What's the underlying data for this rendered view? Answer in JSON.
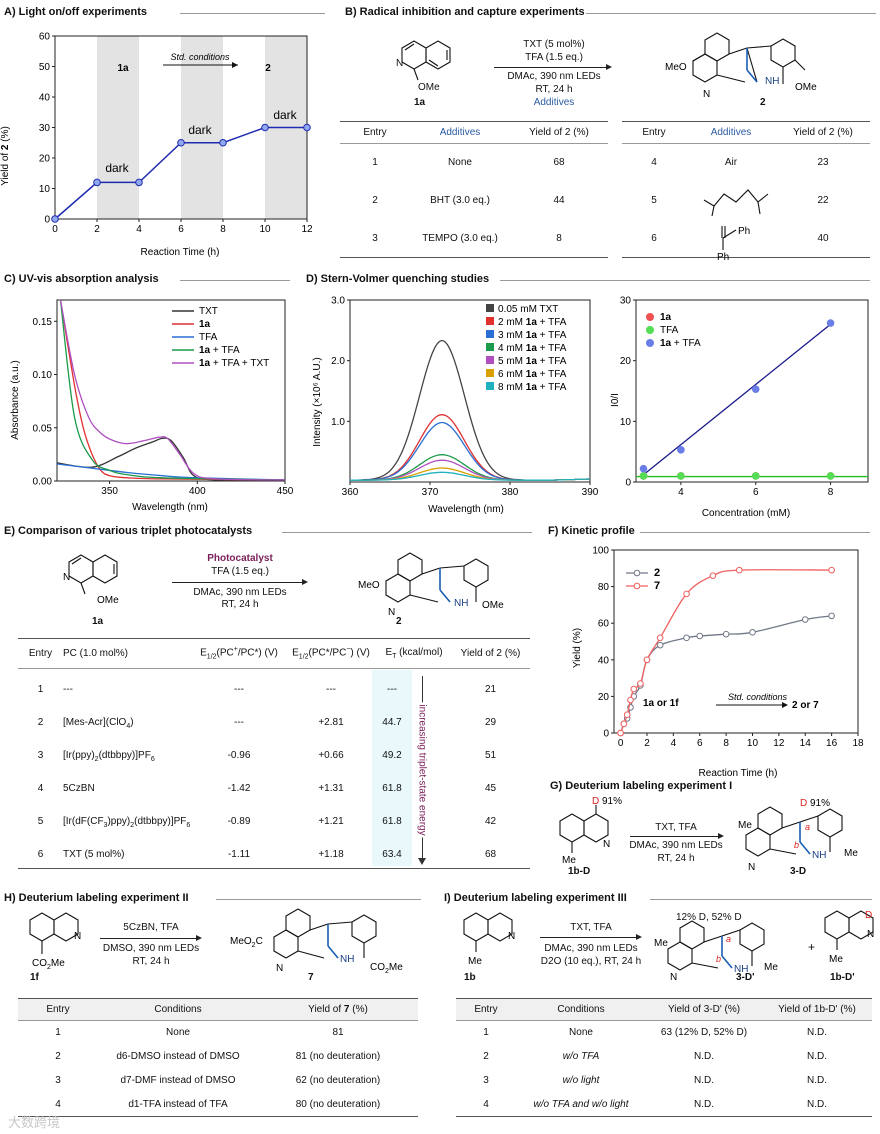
{
  "panelA": {
    "title": "A) Light on/off experiments",
    "ylabel_pre": "Yield of ",
    "ylabel_bold": "2",
    "ylabel_post": " (%)",
    "xlabel": "Reaction Time (h)",
    "arrow_text": "Std. conditions",
    "from": "1a",
    "to": "2",
    "dark_label": "dark"
  },
  "panelB": {
    "title": "B) Radical inhibition and capture experiments",
    "cond1": "TXT (5 mol%)",
    "cond2": "TFA (1.5 eq.)",
    "cond3": "DMAc, 390 nm LEDs",
    "cond4": "RT, 24 h",
    "additives_label": "Additives",
    "sm_label": "1a",
    "prod_label": "2",
    "ome": "OMe",
    "meo": "MeO",
    "nh": "NH",
    "col_entry": "Entry",
    "col_add": "Additives",
    "col_yield": "Yield of 2 (%)",
    "rows_left": [
      {
        "entry": "1",
        "add": "None",
        "yield": "68"
      },
      {
        "entry": "2",
        "add": "BHT (3.0 eq.)",
        "yield": "44"
      },
      {
        "entry": "3",
        "add": "TEMPO (3.0 eq.)",
        "yield": "8"
      }
    ],
    "rows_right": [
      {
        "entry": "4",
        "add": "Air",
        "yield": "23"
      },
      {
        "entry": "5",
        "add": "",
        "yield": "22"
      },
      {
        "entry": "6",
        "add": "",
        "yield": "40"
      }
    ],
    "ph": "Ph"
  },
  "panelC": {
    "title": "C) UV-vis absorption analysis",
    "ylabel": "Absorbance (a.u.)",
    "xlabel": "Wavelength (nm)",
    "legend": [
      "TXT",
      "1a",
      "TFA",
      "1a + TFA",
      "1a + TFA + TXT"
    ]
  },
  "panelD": {
    "title": "D) Stern-Volmer quenching studies",
    "ylabel": "Intensity (×10⁶ A.U.)",
    "xlabel": "Wavelength (nm)",
    "legend": [
      "0.05 mM TXT",
      "2 mM 1a + TFA",
      "3 mM 1a + TFA",
      "4 mM 1a + TFA",
      "5 mM 1a + TFA",
      "6 mM 1a + TFA",
      "8 mM 1a + TFA"
    ],
    "sv_ylabel": "I0/I",
    "sv_xlabel": "Concentration (mM)",
    "sv_legend": [
      "1a",
      "TFA",
      "1a + TFA"
    ]
  },
  "panelE": {
    "title": "E) Comparison of various triplet photocatalysts",
    "pc_label": "Photocatalyst",
    "cond1": "TFA (1.5 eq.)",
    "cond2": "DMAc, 390 nm LEDs",
    "cond3": "RT, 24 h",
    "sm_label": "1a",
    "prod_label": "2",
    "col_entry": "Entry",
    "col_pc": "PC (1.0 mol%)",
    "col_e1": "E1/2(PC+/PC*) (V)",
    "col_e2": "E1/2(PC*/PC−) (V)",
    "col_et": "ET (kcal/mol)",
    "col_yield": "Yield of 2 (%)",
    "energy_label": "increasing triplet-state energy",
    "rows": [
      {
        "entry": "1",
        "pc": "---",
        "e1": "---",
        "e2": "---",
        "et": "---",
        "yield": "21"
      },
      {
        "entry": "2",
        "pc": "[Mes-Acr](ClO4)",
        "e1": "---",
        "e2": "+2.81",
        "et": "44.7",
        "yield": "29"
      },
      {
        "entry": "3",
        "pc": "[Ir(ppy)2(dtbbpy)]PF6",
        "e1": "-0.96",
        "e2": "+0.66",
        "et": "49.2",
        "yield": "51"
      },
      {
        "entry": "4",
        "pc": "5CzBN",
        "e1": "-1.42",
        "e2": "+1.31",
        "et": "61.8",
        "yield": "45"
      },
      {
        "entry": "5",
        "pc": "[Ir(dF(CF3)ppy)2(dtbbpy)]PF6",
        "e1": "-0.89",
        "e2": "+1.21",
        "et": "61.8",
        "yield": "42"
      },
      {
        "entry": "6",
        "pc": "TXT (5 mol%)",
        "e1": "-1.11",
        "e2": "+1.18",
        "et": "63.4",
        "yield": "68"
      }
    ]
  },
  "panelF": {
    "title": "F) Kinetic profile",
    "ylabel": "Yield (%)",
    "xlabel": "Reaction Time (h)",
    "legend": [
      "2",
      "7"
    ],
    "arrow_text": "Std. conditions",
    "from": "1a or 1f",
    "to": "2 or 7"
  },
  "panelG": {
    "title": "G) Deuterium labeling experiment I",
    "cond1": "TXT, TFA",
    "cond2": "DMAc, 390 nm LEDs",
    "cond3": "RT, 24 h",
    "sm_label": "1b-D",
    "prod_label": "3-D",
    "d_pct": "91%",
    "d": "D",
    "me": "Me"
  },
  "panelH": {
    "title": "H) Deuterium labeling experiment II",
    "cond1": "5CzBN, TFA",
    "cond2": "DMSO, 390 nm LEDs",
    "cond3": "RT, 24 h",
    "sm_label": "1f",
    "prod_label": "7",
    "co2me": "CO2Me",
    "col_entry": "Entry",
    "col_cond": "Conditions",
    "col_yield": "Yield of 7 (%)",
    "rows": [
      {
        "entry": "1",
        "cond": "None",
        "yield": "81"
      },
      {
        "entry": "2",
        "cond": "d6-DMSO instead of DMSO",
        "yield": "81 (no deuteration)"
      },
      {
        "entry": "3",
        "cond": "d7-DMF instead of DMSO",
        "yield": "62 (no deuteration)"
      },
      {
        "entry": "4",
        "cond": "d1-TFA instead of TFA",
        "yield": "80 (no deuteration)"
      }
    ]
  },
  "panelI": {
    "title": "I) Deuterium labeling experiment III",
    "cond1": "TXT, TFA",
    "cond2": "DMAc, 390 nm LEDs",
    "cond3": "D2O (10 eq.), RT, 24 h",
    "sm_label": "1b",
    "prod_label": "3-D'",
    "prod2_label": "1b-D'",
    "d_text": "12% D, 52% D",
    "col_entry": "Entry",
    "col_cond": "Conditions",
    "col_y1": "Yield of 3-D' (%)",
    "col_y2": "Yield of 1b-D' (%)",
    "rows": [
      {
        "entry": "1",
        "cond": "None",
        "y1": "63 (12% D, 52% D)",
        "y2": "N.D."
      },
      {
        "entry": "2",
        "cond": "w/o TFA",
        "y1": "N.D.",
        "y2": "N.D."
      },
      {
        "entry": "3",
        "cond": "w/o light",
        "y1": "N.D.",
        "y2": "N.D."
      },
      {
        "entry": "4",
        "cond": "w/o TFA and w/o light",
        "y1": "N.D.",
        "y2": "N.D."
      }
    ]
  },
  "watermark": "大数跨境",
  "chart_data": [
    {
      "type": "line",
      "title": "Light on/off experiments",
      "xlabel": "Reaction Time (h)",
      "ylabel": "Yield of 2 (%)",
      "x": [
        0,
        2,
        4,
        6,
        8,
        10,
        12
      ],
      "series": [
        {
          "name": "2",
          "values": [
            0,
            12,
            12,
            25,
            25,
            30,
            30
          ]
        }
      ],
      "xlim": [
        0,
        12
      ],
      "ylim": [
        0,
        60
      ],
      "xticks": [
        "0",
        "2",
        "4",
        "6",
        "8",
        "10",
        "12"
      ],
      "yticks": [
        "0",
        "10",
        "20",
        "30",
        "40",
        "50",
        "60"
      ],
      "shaded_light_on": [
        [
          2,
          4
        ],
        [
          6,
          8
        ],
        [
          10,
          12
        ]
      ]
    },
    {
      "type": "line",
      "title": "UV-vis absorption analysis",
      "xlabel": "Wavelength (nm)",
      "ylabel": "Absorbance (a.u.)",
      "xlim": [
        320,
        450
      ],
      "ylim": [
        0,
        0.17
      ],
      "xticks": [
        "350",
        "400",
        "450"
      ],
      "yticks": [
        "0.00",
        "0.05",
        "0.10",
        "0.15"
      ],
      "series": [
        {
          "name": "TXT",
          "color": "#333333",
          "x": [
            320,
            340,
            355,
            365,
            375,
            380,
            385,
            392,
            398,
            410,
            450
          ],
          "values": [
            0.017,
            0.013,
            0.023,
            0.031,
            0.037,
            0.04,
            0.038,
            0.022,
            0.005,
            0.001,
            0.0
          ]
        },
        {
          "name": "1a",
          "color": "#e03030",
          "x": [
            322,
            330,
            335,
            340,
            345,
            350,
            360,
            380,
            450
          ],
          "values": [
            0.17,
            0.09,
            0.05,
            0.025,
            0.01,
            0.005,
            0.003,
            0.002,
            0.001
          ]
        },
        {
          "name": "TFA",
          "color": "#2a6fd4",
          "x": [
            320,
            340,
            360,
            380,
            400,
            450
          ],
          "values": [
            0.016,
            0.012,
            0.008,
            0.005,
            0.003,
            0.001
          ]
        },
        {
          "name": "1a + TFA",
          "color": "#1a9a4a",
          "x": [
            322,
            330,
            340,
            350,
            360,
            380,
            450
          ],
          "values": [
            0.17,
            0.06,
            0.02,
            0.01,
            0.006,
            0.003,
            0.001
          ]
        },
        {
          "name": "1a + TFA + TXT",
          "color": "#b050c0",
          "x": [
            322,
            330,
            338,
            345,
            352,
            360,
            370,
            378,
            383,
            390,
            398,
            410,
            450
          ],
          "values": [
            0.17,
            0.1,
            0.06,
            0.045,
            0.038,
            0.035,
            0.038,
            0.041,
            0.04,
            0.025,
            0.007,
            0.002,
            0.001
          ]
        }
      ]
    },
    {
      "type": "line",
      "title": "Stern-Volmer quenching studies",
      "xlabel": "Wavelength (nm)",
      "ylabel": "Intensity (×10⁶ A.U.)",
      "xlim": [
        360,
        390
      ],
      "ylim": [
        0,
        3.0
      ],
      "xticks": [
        "360",
        "370",
        "380",
        "390"
      ],
      "yticks": [
        "1.0",
        "2.0",
        "3.0"
      ],
      "peak_center": 371.5,
      "series": [
        {
          "name": "0.05 mM TXT",
          "color": "#444444",
          "peak": 2.3
        },
        {
          "name": "2 mM 1a + TFA",
          "color": "#e03030",
          "peak": 1.08
        },
        {
          "name": "3 mM 1a + TFA",
          "color": "#2a6fd4",
          "peak": 0.95
        },
        {
          "name": "4 mM 1a + TFA",
          "color": "#1a9a4a",
          "peak": 0.42
        },
        {
          "name": "5 mM 1a + TFA",
          "color": "#b050c0",
          "peak": 0.33
        },
        {
          "name": "6 mM 1a + TFA",
          "color": "#d9a000",
          "peak": 0.2
        },
        {
          "name": "8 mM 1a + TFA",
          "color": "#20b0c0",
          "peak": 0.13
        }
      ]
    },
    {
      "type": "scatter",
      "title": "Stern-Volmer plot",
      "xlabel": "Concentration (mM)",
      "ylabel": "I0/I",
      "xlim": [
        2.8,
        9
      ],
      "ylim": [
        0,
        30
      ],
      "xticks": [
        "4",
        "6",
        "8"
      ],
      "yticks": [
        "0",
        "10",
        "20",
        "30"
      ],
      "x": [
        3,
        4,
        6,
        8
      ],
      "series": [
        {
          "name": "1a",
          "color": "#f05050",
          "values": [
            1.0,
            1.0,
            1.0,
            1.0
          ]
        },
        {
          "name": "TFA",
          "color": "#55dd55",
          "values": [
            1.0,
            1.0,
            1.0,
            1.0
          ]
        },
        {
          "name": "1a + TFA",
          "color": "#6a7ee8",
          "values": [
            2.2,
            5.3,
            15.3,
            26.2
          ]
        }
      ],
      "fit_lines": [
        {
          "color": "#1a1a8a",
          "x": [
            3,
            8
          ],
          "y": [
            1.2,
            26.0
          ]
        },
        {
          "color": "#20c020",
          "x": [
            2.8,
            9
          ],
          "y": [
            0.9,
            0.9
          ]
        }
      ]
    },
    {
      "type": "line",
      "title": "Kinetic profile",
      "xlabel": "Reaction Time (h)",
      "ylabel": "Yield (%)",
      "xlim": [
        -0.5,
        18
      ],
      "ylim": [
        0,
        100
      ],
      "xticks": [
        "0",
        "2",
        "4",
        "6",
        "8",
        "10",
        "12",
        "14",
        "16",
        "18"
      ],
      "yticks": [
        "0",
        "20",
        "40",
        "60",
        "80",
        "100"
      ],
      "series": [
        {
          "name": "2",
          "color": "#707888",
          "x": [
            0,
            0.25,
            0.5,
            0.75,
            1,
            1.5,
            2,
            3,
            5,
            6,
            8,
            10,
            14,
            16
          ],
          "values": [
            0,
            5,
            8,
            14,
            20,
            26,
            40,
            48,
            52,
            53,
            54,
            55,
            62,
            64
          ]
        },
        {
          "name": "7",
          "color": "#f06060",
          "x": [
            0,
            0.25,
            0.5,
            0.75,
            1,
            1.5,
            2,
            3,
            5,
            7,
            9,
            16
          ],
          "values": [
            0,
            5,
            10,
            18,
            24,
            27,
            40,
            52,
            76,
            86,
            89,
            89
          ]
        }
      ]
    }
  ]
}
